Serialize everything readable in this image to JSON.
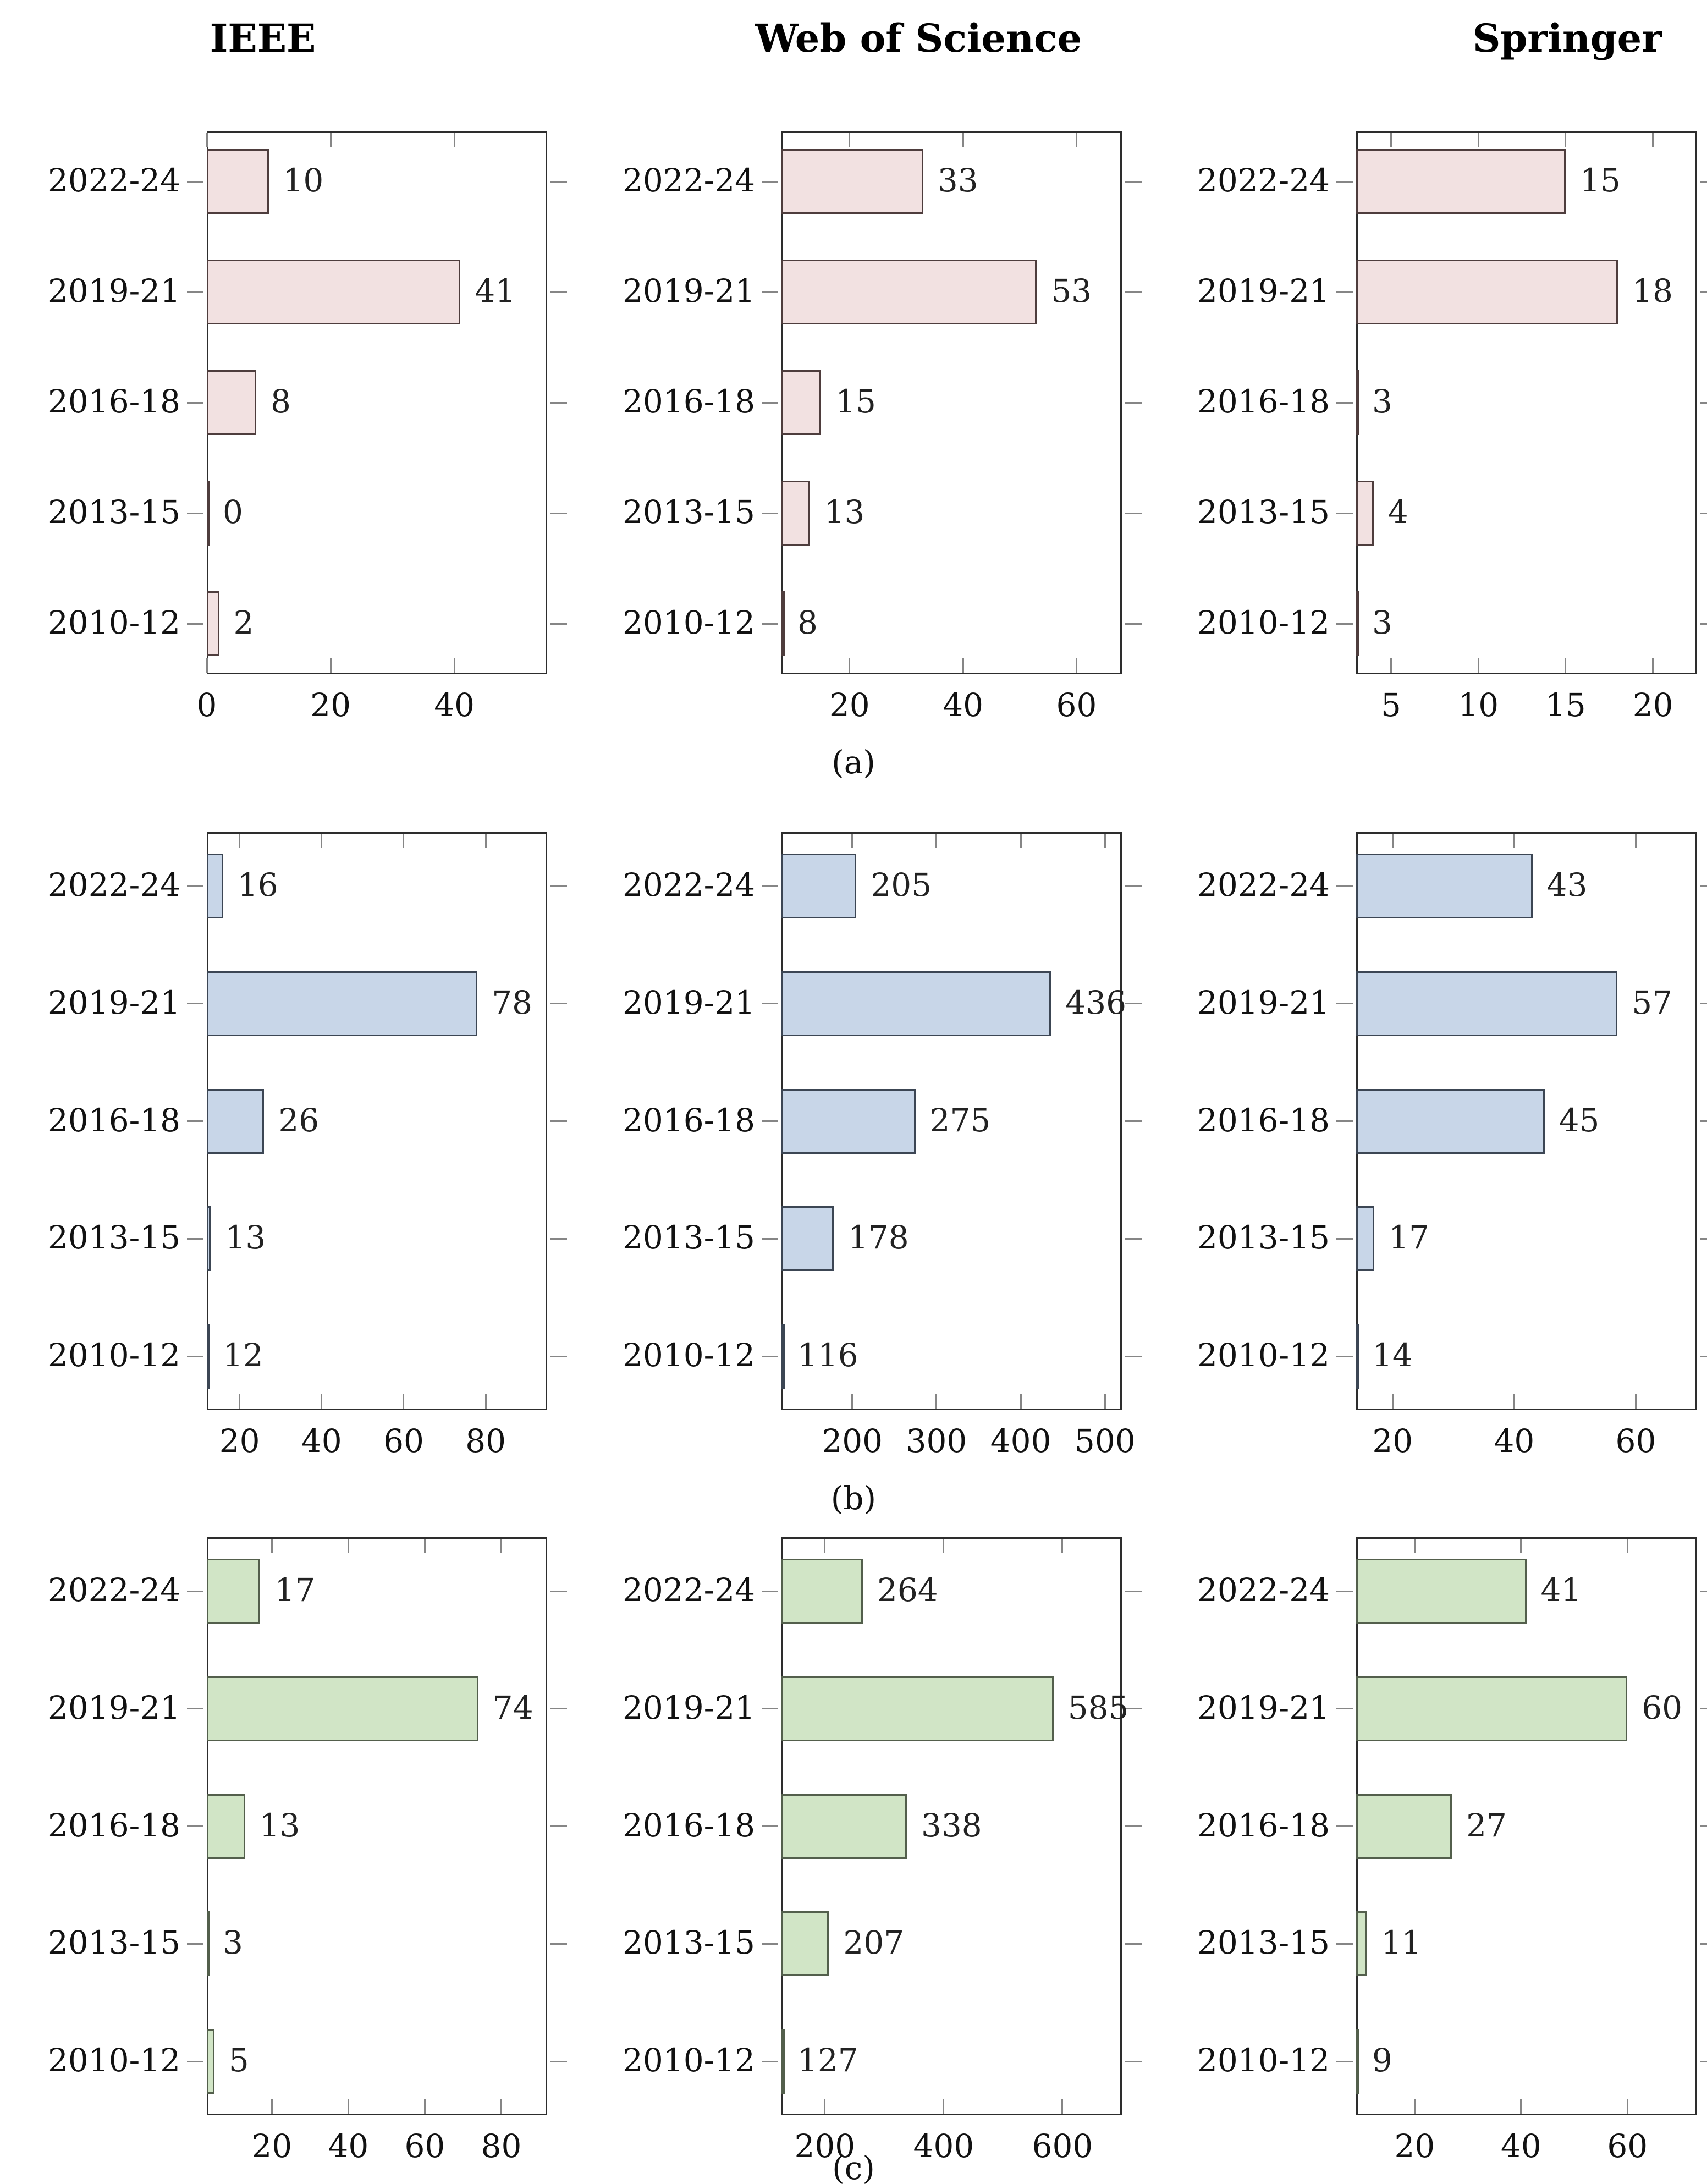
{
  "figure": {
    "column_titles": [
      "IEEE",
      "Web of Science",
      "Springer"
    ],
    "row_captions": [
      "(a)",
      "(b)",
      "(c)"
    ],
    "categories": [
      "2022-24",
      "2019-21",
      "2016-18",
      "2013-15",
      "2010-12"
    ],
    "colors": {
      "row_a_fill": "#f2e1e1",
      "row_a_stroke": "#4e3d3d",
      "row_b_fill": "#c8d6e8",
      "row_b_stroke": "#3c4654",
      "row_c_fill": "#d1e5c6",
      "row_c_stroke": "#535f4c",
      "axis": "#2d2d2d",
      "tick": "#868686",
      "text": "#111111",
      "value_text": "#222222",
      "background": "#ffffff"
    }
  },
  "chart_data": [
    {
      "type": "bar",
      "orientation": "horizontal",
      "row": "a",
      "source": "IEEE",
      "categories": [
        "2022-24",
        "2019-21",
        "2016-18",
        "2013-15",
        "2010-12"
      ],
      "values": [
        10,
        41,
        8,
        0,
        2
      ],
      "xmin": 0,
      "xmax": 55,
      "xticks": [
        0,
        20,
        40
      ]
    },
    {
      "type": "bar",
      "orientation": "horizontal",
      "row": "a",
      "source": "Web of Science",
      "categories": [
        "2022-24",
        "2019-21",
        "2016-18",
        "2013-15",
        "2010-12"
      ],
      "values": [
        33,
        53,
        15,
        13,
        8
      ],
      "xmin": 8,
      "xmax": 68,
      "xticks": [
        20,
        40,
        60
      ]
    },
    {
      "type": "bar",
      "orientation": "horizontal",
      "row": "a",
      "source": "Springer",
      "categories": [
        "2022-24",
        "2019-21",
        "2016-18",
        "2013-15",
        "2010-12"
      ],
      "values": [
        15,
        18,
        3,
        4,
        3
      ],
      "xmin": 3,
      "xmax": 22.5,
      "xticks": [
        5,
        10,
        15,
        20
      ]
    },
    {
      "type": "bar",
      "orientation": "horizontal",
      "row": "b",
      "source": "IEEE",
      "categories": [
        "2022-24",
        "2019-21",
        "2016-18",
        "2013-15",
        "2010-12"
      ],
      "values": [
        16,
        78,
        26,
        13,
        12
      ],
      "xmin": 12,
      "xmax": 95,
      "xticks": [
        20,
        40,
        60,
        80
      ]
    },
    {
      "type": "bar",
      "orientation": "horizontal",
      "row": "b",
      "source": "Web of Science",
      "categories": [
        "2022-24",
        "2019-21",
        "2016-18",
        "2013-15",
        "2010-12"
      ],
      "values": [
        205,
        436,
        275,
        178,
        116
      ],
      "xmin": 116,
      "xmax": 520,
      "xticks": [
        200,
        300,
        400,
        500
      ]
    },
    {
      "type": "bar",
      "orientation": "horizontal",
      "row": "b",
      "source": "Springer",
      "categories": [
        "2022-24",
        "2019-21",
        "2016-18",
        "2013-15",
        "2010-12"
      ],
      "values": [
        43,
        57,
        45,
        17,
        14
      ],
      "xmin": 14,
      "xmax": 70,
      "xticks": [
        20,
        40,
        60
      ]
    },
    {
      "type": "bar",
      "orientation": "horizontal",
      "row": "c",
      "source": "IEEE",
      "categories": [
        "2022-24",
        "2019-21",
        "2016-18",
        "2013-15",
        "2010-12"
      ],
      "values": [
        17,
        74,
        13,
        3,
        5
      ],
      "xmin": 3,
      "xmax": 92,
      "xticks": [
        20,
        40,
        60,
        80
      ]
    },
    {
      "type": "bar",
      "orientation": "horizontal",
      "row": "c",
      "source": "Web of Science",
      "categories": [
        "2022-24",
        "2019-21",
        "2016-18",
        "2013-15",
        "2010-12"
      ],
      "values": [
        264,
        585,
        338,
        207,
        127
      ],
      "xmin": 127,
      "xmax": 700,
      "xticks": [
        200,
        400,
        600
      ]
    },
    {
      "type": "bar",
      "orientation": "horizontal",
      "row": "c",
      "source": "Springer",
      "categories": [
        "2022-24",
        "2019-21",
        "2016-18",
        "2013-15",
        "2010-12"
      ],
      "values": [
        41,
        60,
        27,
        11,
        9
      ],
      "xmin": 9,
      "xmax": 73,
      "xticks": [
        20,
        40,
        60
      ]
    }
  ]
}
